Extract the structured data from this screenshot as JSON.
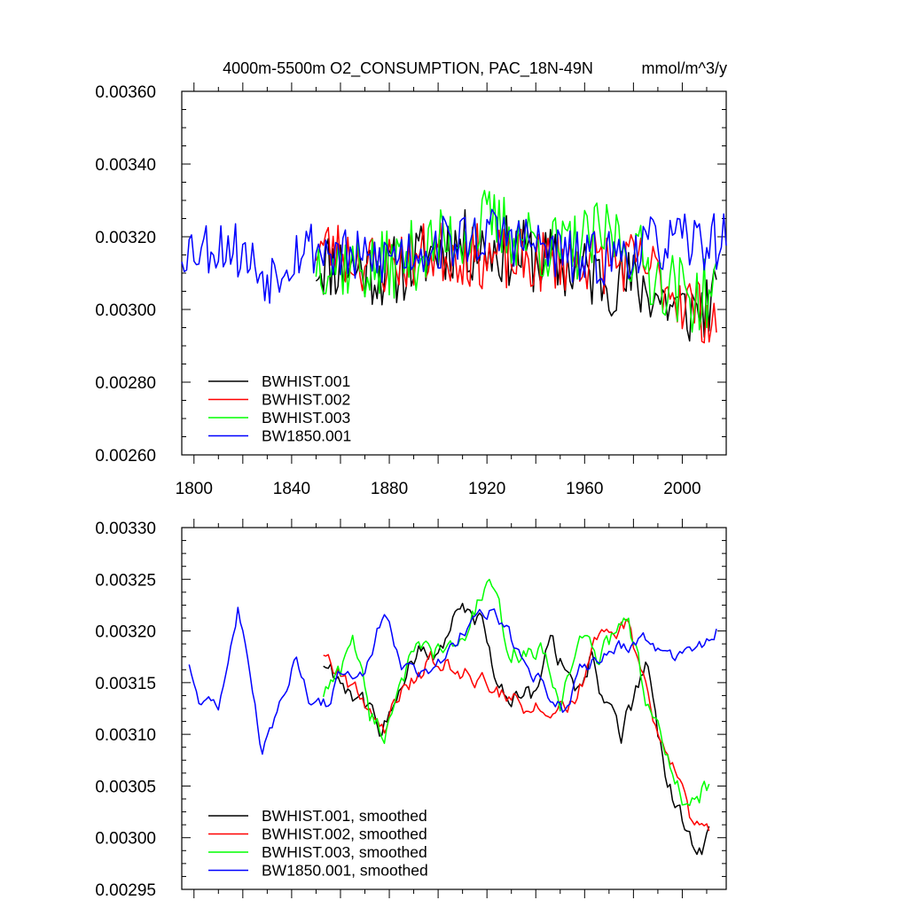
{
  "chart_data": [
    {
      "type": "line",
      "title": "4000m-5500m O2_CONSUMPTION, PAC_18N-49N",
      "units": "mmol/m^3/y",
      "ylim": [
        0.0026,
        0.0036
      ],
      "xlim": [
        1795,
        2018
      ],
      "yticks": [
        "0.00260",
        "0.00280",
        "0.00300",
        "0.00320",
        "0.00340",
        "0.00360"
      ],
      "xticks": [
        "1800",
        "1840",
        "1880",
        "1920",
        "1960",
        "2000"
      ],
      "legend_position": "lower-left",
      "series": [
        {
          "name": "BWHIST.001",
          "color": "#000000",
          "start": 1850,
          "end": 2014,
          "amp": 0.0001,
          "seed": 11,
          "anchors": [
            [
              1850,
              0.00313
            ],
            [
              1880,
              0.0031
            ],
            [
              1905,
              0.00318
            ],
            [
              1930,
              0.00316
            ],
            [
              1960,
              0.0031
            ],
            [
              1985,
              0.00306
            ],
            [
              2000,
              0.00299
            ],
            [
              2014,
              0.00302
            ]
          ]
        },
        {
          "name": "BWHIST.002",
          "color": "#ff0000",
          "start": 1850,
          "end": 2014,
          "amp": 9e-05,
          "seed": 23,
          "anchors": [
            [
              1850,
              0.00318
            ],
            [
              1875,
              0.00312
            ],
            [
              1900,
              0.00316
            ],
            [
              1935,
              0.00313
            ],
            [
              1960,
              0.00314
            ],
            [
              1985,
              0.00312
            ],
            [
              2000,
              0.00303
            ],
            [
              2014,
              0.00297
            ]
          ]
        },
        {
          "name": "BWHIST.003",
          "color": "#00ff00",
          "start": 1850,
          "end": 2014,
          "amp": 0.0001,
          "seed": 37,
          "anchors": [
            [
              1850,
              0.00314
            ],
            [
              1875,
              0.00311
            ],
            [
              1905,
              0.00319
            ],
            [
              1920,
              0.00324
            ],
            [
              1950,
              0.00316
            ],
            [
              1972,
              0.00321
            ],
            [
              1990,
              0.00309
            ],
            [
              2005,
              0.00303
            ],
            [
              2014,
              0.00305
            ]
          ]
        },
        {
          "name": "BW1850.001",
          "color": "#0000ff",
          "start": 1795,
          "end": 2018,
          "amp": 8e-05,
          "seed": 53,
          "anchors": [
            [
              1795,
              0.00317
            ],
            [
              1815,
              0.00318
            ],
            [
              1830,
              0.00309
            ],
            [
              1845,
              0.00318
            ],
            [
              1870,
              0.00313
            ],
            [
              1900,
              0.00318
            ],
            [
              1925,
              0.00321
            ],
            [
              1960,
              0.00313
            ],
            [
              1990,
              0.00318
            ],
            [
              2018,
              0.00319
            ]
          ]
        }
      ]
    },
    {
      "type": "line",
      "title": "",
      "ylim": [
        0.00295,
        0.0033
      ],
      "xlim": [
        1795,
        2018
      ],
      "yticks": [
        "0.00295",
        "0.00300",
        "0.00305",
        "0.00310",
        "0.00315",
        "0.00320",
        "0.00325",
        "0.00330"
      ],
      "legend_position": "lower-left",
      "series": [
        {
          "name": "BWHIST.001, smoothed",
          "color": "#000000",
          "start": 1853,
          "end": 2011,
          "amp": 9e-06,
          "seed": 11,
          "anchors": [
            [
              1853,
              0.00317
            ],
            [
              1862,
              0.00315
            ],
            [
              1870,
              0.00313
            ],
            [
              1876,
              0.0031
            ],
            [
              1884,
              0.00315
            ],
            [
              1893,
              0.00318
            ],
            [
              1900,
              0.00318
            ],
            [
              1910,
              0.00322
            ],
            [
              1917,
              0.00321
            ],
            [
              1925,
              0.00314
            ],
            [
              1938,
              0.00314
            ],
            [
              1946,
              0.00319
            ],
            [
              1957,
              0.00314
            ],
            [
              1963,
              0.00318
            ],
            [
              1968,
              0.00313
            ],
            [
              1975,
              0.0031
            ],
            [
              1985,
              0.00317
            ],
            [
              1994,
              0.00305
            ],
            [
              2003,
              0.003
            ],
            [
              2008,
              0.00299
            ],
            [
              2011,
              0.00302
            ]
          ]
        },
        {
          "name": "BWHIST.002, smoothed",
          "color": "#ff0000",
          "start": 1853,
          "end": 2011,
          "amp": 8e-06,
          "seed": 23,
          "anchors": [
            [
              1853,
              0.00318
            ],
            [
              1860,
              0.00316
            ],
            [
              1870,
              0.00313
            ],
            [
              1878,
              0.00311
            ],
            [
              1887,
              0.00315
            ],
            [
              1898,
              0.00317
            ],
            [
              1910,
              0.00316
            ],
            [
              1920,
              0.00315
            ],
            [
              1935,
              0.00313
            ],
            [
              1945,
              0.00312
            ],
            [
              1955,
              0.00313
            ],
            [
              1965,
              0.00319
            ],
            [
              1978,
              0.00321
            ],
            [
              1988,
              0.00311
            ],
            [
              1997,
              0.00306
            ],
            [
              2005,
              0.00301
            ],
            [
              2011,
              0.003
            ]
          ]
        },
        {
          "name": "BWHIST.003, smoothed",
          "color": "#00ff00",
          "start": 1853,
          "end": 2011,
          "amp": 9e-06,
          "seed": 37,
          "anchors": [
            [
              1853,
              0.00314
            ],
            [
              1860,
              0.00316
            ],
            [
              1865,
              0.0032
            ],
            [
              1872,
              0.00312
            ],
            [
              1878,
              0.0031
            ],
            [
              1885,
              0.00316
            ],
            [
              1893,
              0.00318
            ],
            [
              1905,
              0.00318
            ],
            [
              1912,
              0.0032
            ],
            [
              1920,
              0.00325
            ],
            [
              1930,
              0.00318
            ],
            [
              1942,
              0.00318
            ],
            [
              1950,
              0.00313
            ],
            [
              1958,
              0.0032
            ],
            [
              1965,
              0.00317
            ],
            [
              1977,
              0.00322
            ],
            [
              1986,
              0.00313
            ],
            [
              1996,
              0.00306
            ],
            [
              2003,
              0.00302
            ],
            [
              2009,
              0.00305
            ],
            [
              2011,
              0.00305
            ]
          ]
        },
        {
          "name": "BW1850.001, smoothed",
          "color": "#0000ff",
          "start": 1798,
          "end": 2014,
          "amp": 6e-06,
          "seed": 53,
          "anchors": [
            [
              1798,
              0.00317
            ],
            [
              1803,
              0.00313
            ],
            [
              1810,
              0.00313
            ],
            [
              1818,
              0.00322
            ],
            [
              1822,
              0.00318
            ],
            [
              1828,
              0.00308
            ],
            [
              1834,
              0.00312
            ],
            [
              1842,
              0.00318
            ],
            [
              1848,
              0.00313
            ],
            [
              1855,
              0.00313
            ],
            [
              1860,
              0.00316
            ],
            [
              1870,
              0.00316
            ],
            [
              1878,
              0.00322
            ],
            [
              1885,
              0.00317
            ],
            [
              1893,
              0.00316
            ],
            [
              1900,
              0.00317
            ],
            [
              1910,
              0.0032
            ],
            [
              1923,
              0.00322
            ],
            [
              1933,
              0.00318
            ],
            [
              1945,
              0.00314
            ],
            [
              1952,
              0.00312
            ],
            [
              1958,
              0.00316
            ],
            [
              1970,
              0.00318
            ],
            [
              1985,
              0.00319
            ],
            [
              1997,
              0.00317
            ],
            [
              2005,
              0.00318
            ],
            [
              2014,
              0.0032
            ]
          ]
        }
      ]
    }
  ]
}
